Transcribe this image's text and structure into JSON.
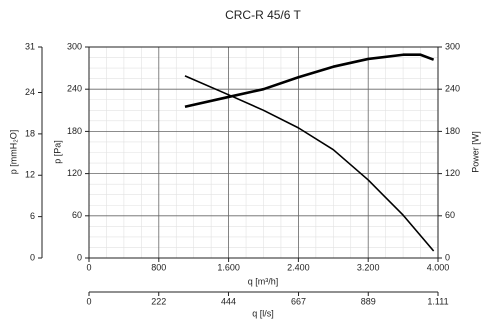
{
  "chart_data": {
    "type": "line",
    "title": "CRC-R 45/6 T",
    "xlabel": "q [m³/h]",
    "xlim": [
      0,
      4000
    ],
    "xticks": [
      0,
      800,
      {
        "value": 1600,
        "label": "1.600"
      },
      {
        "value": 2400,
        "label": "2.400"
      },
      {
        "value": 3200,
        "label": "3.200"
      },
      {
        "value": 4000,
        "label": "4.000"
      }
    ],
    "x2label": "q [l/s]",
    "x2lim": [
      0,
      1111
    ],
    "x2ticks": [
      0,
      222,
      444,
      667,
      889,
      {
        "value": 1111,
        "label": "1.111"
      }
    ],
    "ylabel": "p [Pa]",
    "ylim": [
      0,
      300
    ],
    "yticks": [
      0,
      60,
      120,
      180,
      240,
      300
    ],
    "y3label": "p [mmH₂O]",
    "y3lim": [
      0,
      30.6
    ],
    "y3ticks": [
      0,
      6,
      12,
      18,
      24,
      {
        "value": 30.6,
        "label": "31"
      }
    ],
    "y2label": "Power [W]",
    "y2lim": [
      0,
      300
    ],
    "y2ticks": [
      0,
      60,
      120,
      180,
      240,
      300
    ],
    "grid": true,
    "minor_grid_divisions": 4,
    "series": [
      {
        "color": "#000000",
        "x": [
          1100,
          1600,
          2000,
          2400,
          2800,
          3200,
          3600,
          3950
        ],
        "values": [
          259,
          232,
          210,
          185,
          154,
          111,
          61,
          10
        ]
      },
      {
        "color": "#000000",
        "axis": "y2",
        "x": [
          1100,
          1600,
          2000,
          2400,
          2800,
          3200,
          3600,
          3800,
          3950
        ],
        "values": [
          215,
          229,
          240,
          257,
          272,
          283,
          289,
          289,
          282
        ]
      }
    ]
  }
}
